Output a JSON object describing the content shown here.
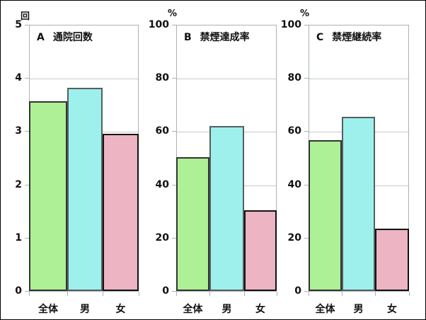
{
  "colors": {
    "all": "#aef096",
    "male": "#9ef0ec",
    "female": "#edb4c4",
    "border": "#333333",
    "grid": "#c6cacc"
  },
  "categories": [
    "全体",
    "男",
    "女"
  ],
  "charts": [
    {
      "letter": "A",
      "title": "通院回数",
      "unit": "回",
      "ymax": 5,
      "ticks": [
        "0",
        "1",
        "2",
        "3",
        "4",
        "5"
      ],
      "values": [
        3.56,
        3.82,
        2.95
      ]
    },
    {
      "letter": "B",
      "title": "禁煙達成率",
      "unit": "%",
      "ymax": 100,
      "ticks": [
        "0",
        "20",
        "40",
        "60",
        "80",
        "100"
      ],
      "values": [
        50.3,
        62.0,
        30.3
      ]
    },
    {
      "letter": "C",
      "title": "禁煙継続率",
      "unit": "%",
      "ymax": 100,
      "ticks": [
        "0",
        "20",
        "40",
        "60",
        "80",
        "100"
      ],
      "values": [
        56.6,
        65.4,
        23.4
      ]
    }
  ],
  "chart_data": [
    {
      "type": "bar",
      "title": "A 通院回数",
      "ylabel": "回",
      "xlabel": "",
      "categories": [
        "全体",
        "男",
        "女"
      ],
      "values": [
        3.56,
        3.82,
        2.95
      ],
      "ylim": [
        0,
        5
      ],
      "yticks": [
        0,
        1,
        2,
        3,
        4,
        5
      ],
      "grid": true,
      "legend": "none"
    },
    {
      "type": "bar",
      "title": "B 禁煙達成率",
      "ylabel": "%",
      "xlabel": "",
      "categories": [
        "全体",
        "男",
        "女"
      ],
      "values": [
        50.3,
        62.0,
        30.3
      ],
      "ylim": [
        0,
        100
      ],
      "yticks": [
        0,
        20,
        40,
        60,
        80,
        100
      ],
      "grid": true,
      "legend": "none"
    },
    {
      "type": "bar",
      "title": "C 禁煙継続率",
      "ylabel": "%",
      "xlabel": "",
      "categories": [
        "全体",
        "男",
        "女"
      ],
      "values": [
        56.6,
        65.4,
        23.4
      ],
      "ylim": [
        0,
        100
      ],
      "yticks": [
        0,
        20,
        40,
        60,
        80,
        100
      ],
      "grid": true,
      "legend": "none"
    }
  ]
}
